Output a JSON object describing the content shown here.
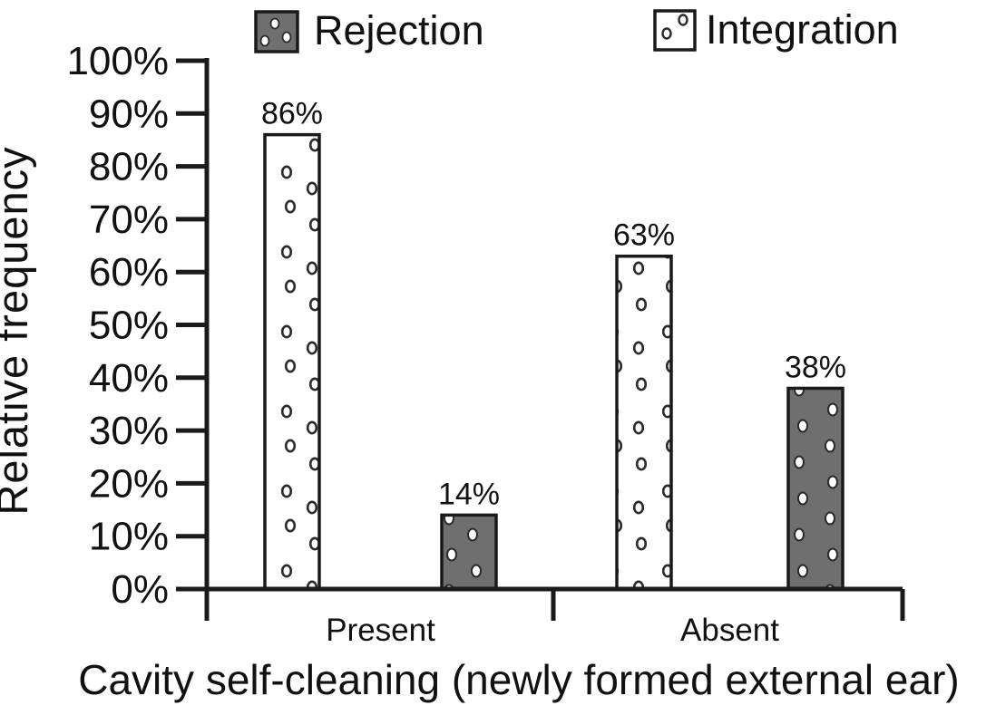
{
  "chart_data": {
    "type": "bar",
    "title": "",
    "categories": [
      "Present",
      "Absent"
    ],
    "series": [
      {
        "name": "Integration",
        "style": "white-dotted",
        "values": [
          86,
          63
        ]
      },
      {
        "name": "Rejection",
        "style": "gray-dotted",
        "values": [
          14,
          38
        ]
      }
    ],
    "bar_value_labels": [
      [
        "86%",
        "63%"
      ],
      [
        "14%",
        "38%"
      ]
    ],
    "xlabel": "Cavity self-cleaning (newly formed external ear)",
    "ylabel": "Relative frequency",
    "ylim": [
      0,
      100
    ],
    "ytick_step": 10,
    "ytick_labels": [
      "0%",
      "10%",
      "20%",
      "30%",
      "40%",
      "50%",
      "60%",
      "70%",
      "80%",
      "90%",
      "100%"
    ],
    "legend": [
      {
        "label": "Rejection",
        "swatch": "gray-dotted"
      },
      {
        "label": "Integration",
        "swatch": "white-dotted"
      }
    ],
    "legend_position": "top",
    "grid": false,
    "colors": {
      "bar_gray": "#6f6f6f",
      "bar_white": "#ffffff",
      "outline": "#1a1a1a",
      "dot_ring": "#2b2b2b",
      "background": "#ffffff"
    }
  }
}
